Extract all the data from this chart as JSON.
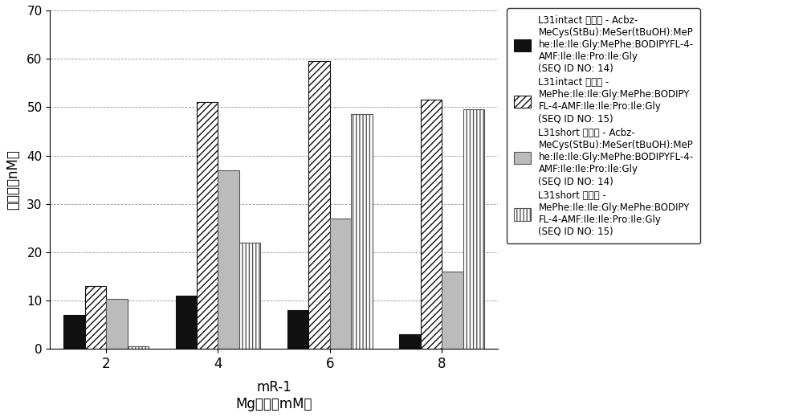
{
  "categories": [
    2,
    4,
    6,
    8
  ],
  "series": [
    {
      "name": "L31intact 核糖体 - Acbz-\nMeCys(StBu):MeSer(tBuOH):MeP\nhe:Ile:Ile:Gly:MePhe:BODIPYFL-4-\nAMF:Ile:Ile:Pro:Ile:Gly\n(SEQ ID NO: 14)",
      "values": [
        7,
        11,
        8,
        3
      ],
      "hatch": "",
      "facecolor": "#111111",
      "edgecolor": "#111111"
    },
    {
      "name": "L31intact 核糖体 -\nMePhe:Ile:Ile:Gly:MePhe:BODIPY\nFL-4-AMF:Ile:Ile:Pro:Ile:Gly\n(SEQ ID NO: 15)",
      "values": [
        13,
        51,
        59.5,
        51.5
      ],
      "hatch": "////",
      "facecolor": "#ffffff",
      "edgecolor": "#111111"
    },
    {
      "name": "L31short 核糖体 - Acbz-\nMeCys(StBu):MeSer(tBuOH):MeP\nhe:Ile:Ile:Gly:MePhe:BODIPYFL-4-\nAMF:Ile:Ile:Pro:Ile:Gly\n(SEQ ID NO: 14)",
      "values": [
        10.3,
        37,
        27,
        16
      ],
      "hatch": "",
      "facecolor": "#bbbbbb",
      "edgecolor": "#555555"
    },
    {
      "name": "L31short 核糖体 -\nMePhe:Ile:Ile:Gly:MePhe:BODIPY\nFL-4-AMF:Ile:Ile:Pro:Ile:Gly\n(SEQ ID NO: 15)",
      "values": [
        0.5,
        22,
        48.5,
        49.5
      ],
      "hatch": "||||",
      "facecolor": "#ffffff",
      "edgecolor": "#555555"
    }
  ],
  "ylim": [
    0,
    70
  ],
  "yticks": [
    0,
    10,
    20,
    30,
    40,
    50,
    60,
    70
  ],
  "ylabel": "翻译量（nM）",
  "xlabel1": "mR-1",
  "xlabel2": "Mg浓度（mM）",
  "background_color": "#ffffff",
  "bar_width": 0.19
}
